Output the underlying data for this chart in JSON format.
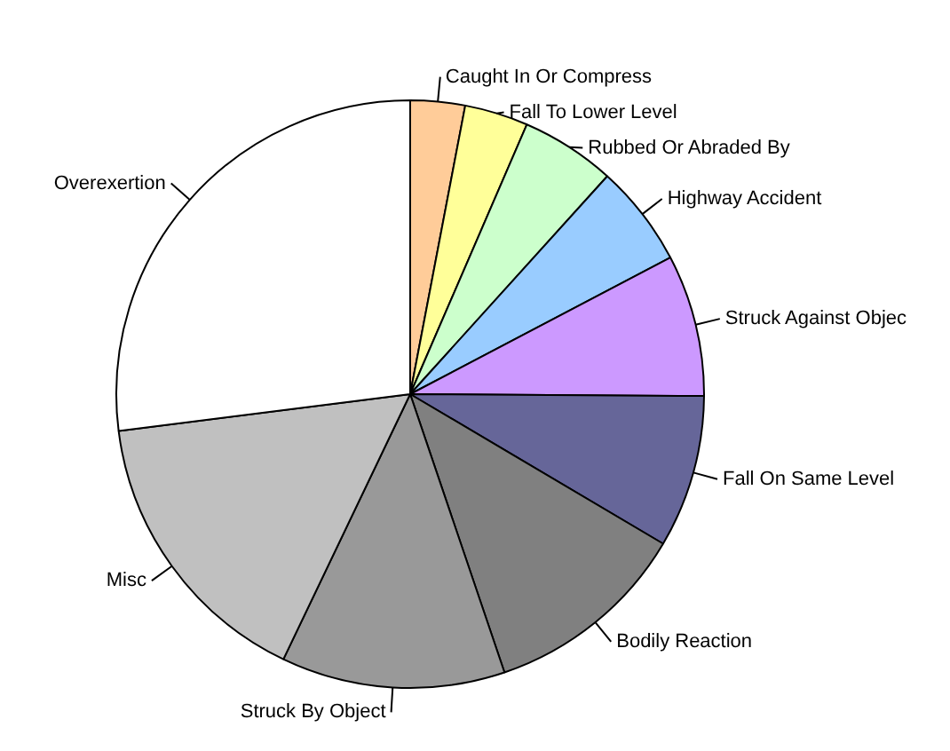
{
  "chart_data": {
    "type": "pie",
    "categories": [
      "Caught In Or Compress",
      "Fall To Lower Level",
      "Rubbed Or Abraded By",
      "Highway Accident",
      "Struck Against Objec",
      "Fall On Same Level",
      "Bodily Reaction",
      "Struck By Object",
      "Misc",
      "Overexertion"
    ],
    "values": [
      3.0,
      3.5,
      5.2,
      5.6,
      7.8,
      8.4,
      11.3,
      12.3,
      15.9,
      27.0
    ],
    "colors": [
      "#ffcc99",
      "#ffff99",
      "#ccffcc",
      "#99ccff",
      "#cc99ff",
      "#666699",
      "#808080",
      "#999999",
      "#c0c0c0",
      "#ffffff"
    ],
    "legend": false
  }
}
